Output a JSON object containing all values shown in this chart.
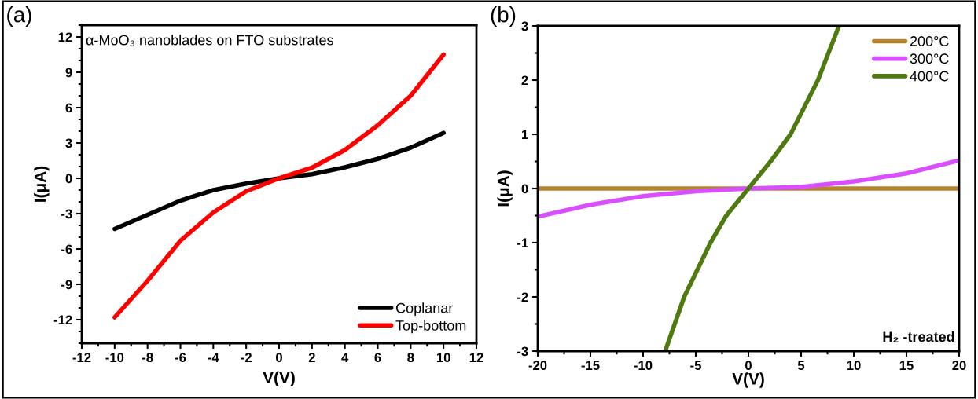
{
  "chart_data": [
    {
      "type": "line",
      "xlabel": "V(V)",
      "ylabel": "I(μA)",
      "annotations": [
        "(a)",
        "α-MoO₃ nanoblades on FTO substrates"
      ],
      "xlim": [
        -12,
        12
      ],
      "xticks": [
        -12,
        -10,
        -8,
        -6,
        -4,
        -2,
        0,
        2,
        4,
        6,
        8,
        10,
        12
      ],
      "ylim": [
        -14,
        13
      ],
      "yticks": [
        -12,
        -9,
        -6,
        -3,
        0,
        3,
        6,
        9,
        12
      ],
      "grid": false,
      "legend": "bottom right",
      "marker": "none",
      "line_style": "solid",
      "series": [
        {
          "name": "Coplanar",
          "color": "#000000",
          "x": [
            -10,
            -8,
            -6,
            -4,
            -2,
            0,
            2,
            4,
            6,
            8,
            10
          ],
          "values": [
            -4.3,
            -3.1,
            -1.9,
            -1.0,
            -0.45,
            0,
            0.35,
            0.93,
            1.65,
            2.6,
            3.85
          ]
        },
        {
          "name": "Top-bottom",
          "color": "#ff0000",
          "x": [
            -10,
            -8,
            -6,
            -4,
            -2,
            0,
            2,
            4,
            6,
            8,
            10
          ],
          "values": [
            -11.8,
            -8.7,
            -5.3,
            -2.9,
            -1.1,
            0,
            0.9,
            2.4,
            4.5,
            7.0,
            10.5
          ]
        }
      ]
    },
    {
      "type": "line",
      "xlabel": "V(V)",
      "ylabel": "I(μA)",
      "annotations": [
        "(b)",
        "H₂ -treated"
      ],
      "xlim": [
        -20,
        20
      ],
      "xticks": [
        -20,
        -15,
        -10,
        -5,
        0,
        5,
        10,
        15,
        20
      ],
      "ylim": [
        -3,
        3
      ],
      "yticks": [
        -3,
        -2,
        -1,
        0,
        1,
        2,
        3
      ],
      "grid": false,
      "legend": "top right",
      "marker": "none",
      "line_style": "solid",
      "series": [
        {
          "name": "200°C",
          "color": "#b5862c",
          "x": [
            -20,
            -10,
            0,
            10,
            20
          ],
          "values": [
            0,
            0,
            0,
            0,
            0
          ]
        },
        {
          "name": "300°C",
          "color": "#d94fff",
          "x": [
            -20,
            -15,
            -10,
            -5,
            0,
            5,
            10,
            15,
            20
          ],
          "values": [
            -0.52,
            -0.3,
            -0.14,
            -0.05,
            0,
            0.03,
            0.13,
            0.28,
            0.52
          ]
        },
        {
          "name": "400°C",
          "color": "#4f7a0f",
          "x": [
            -7.9,
            -6.1,
            -3.6,
            -2.1,
            0,
            2.1,
            4.0,
            6.6,
            8.6
          ],
          "values": [
            -3,
            -2,
            -1,
            -0.5,
            0,
            0.5,
            1,
            2,
            3
          ]
        }
      ]
    }
  ]
}
